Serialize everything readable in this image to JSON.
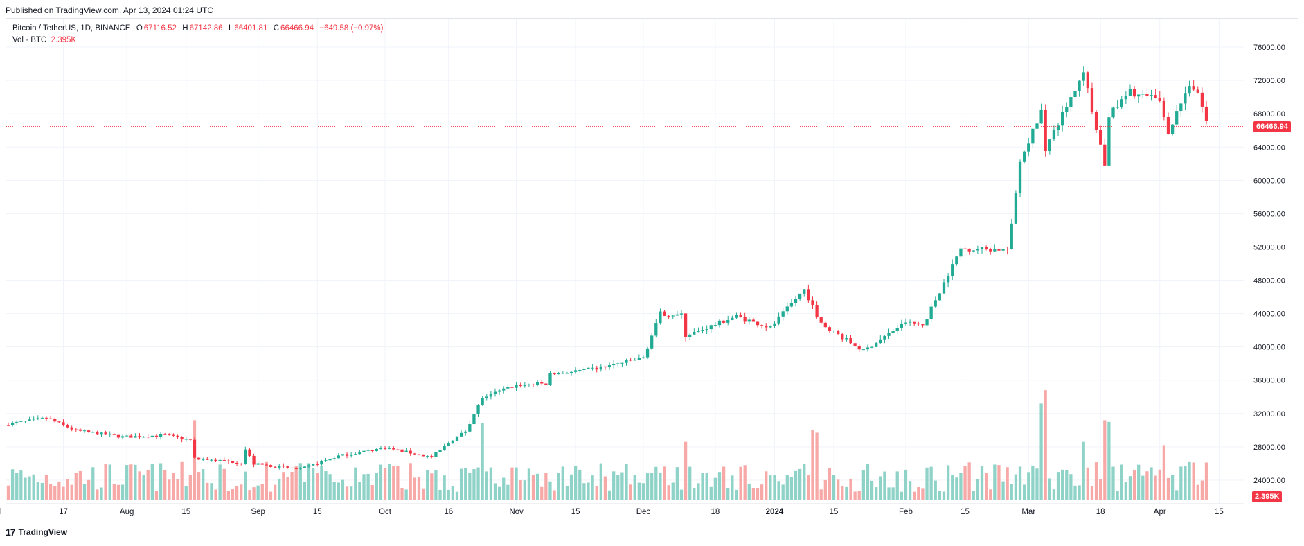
{
  "header": {
    "published": "Published on TradingView.com, Apr 13, 2024 01:24 UTC"
  },
  "legend": {
    "symbol": "Bitcoin / TetherUS, 1D, BINANCE",
    "o_label": "O",
    "o": "67116.52",
    "h_label": "H",
    "h": "67142.86",
    "l_label": "L",
    "l": "66401.81",
    "c_label": "C",
    "c": "66466.94",
    "change": "−649.58 (−0.97%)",
    "vol_label": "Vol · BTC",
    "vol": "2.395K"
  },
  "footer": {
    "brand": "TradingView",
    "logo_glyph": "17"
  },
  "colors": {
    "up": "#22ab94",
    "down": "#f23645",
    "vol_up": "#8fd3c8",
    "vol_down": "#f7a9a7",
    "grid": "#f0f3fa",
    "last_line": "#f23645"
  },
  "chart_data": {
    "type": "candlestick",
    "title": "Bitcoin / TetherUS, 1D, BINANCE",
    "price_axis": {
      "ticks": [
        24000,
        28000,
        32000,
        36000,
        40000,
        44000,
        48000,
        52000,
        56000,
        60000,
        64000,
        68000,
        72000,
        76000
      ],
      "range": [
        20000,
        79500
      ]
    },
    "time_axis": {
      "start": "2023-07-04",
      "end": "2024-04-12",
      "labels": [
        {
          "text": "Jul",
          "date": "2023-07-01"
        },
        {
          "text": "17",
          "date": "2023-07-17"
        },
        {
          "text": "Aug",
          "date": "2023-08-01"
        },
        {
          "text": "15",
          "date": "2023-08-15"
        },
        {
          "text": "Sep",
          "date": "2023-09-01"
        },
        {
          "text": "15",
          "date": "2023-09-15"
        },
        {
          "text": "Oct",
          "date": "2023-10-01"
        },
        {
          "text": "16",
          "date": "2023-10-16"
        },
        {
          "text": "Nov",
          "date": "2023-11-01"
        },
        {
          "text": "15",
          "date": "2023-11-15"
        },
        {
          "text": "Dec",
          "date": "2023-12-01"
        },
        {
          "text": "18",
          "date": "2023-12-18"
        },
        {
          "text": "2024",
          "date": "2024-01-01",
          "bold": true
        },
        {
          "text": "15",
          "date": "2024-01-15"
        },
        {
          "text": "Feb",
          "date": "2024-02-01"
        },
        {
          "text": "15",
          "date": "2024-02-15"
        },
        {
          "text": "Mar",
          "date": "2024-03-01"
        },
        {
          "text": "18",
          "date": "2024-03-18"
        },
        {
          "text": "Apr",
          "date": "2024-04-01"
        },
        {
          "text": "15",
          "date": "2024-04-15"
        }
      ]
    },
    "last_price": {
      "value": 66466.94,
      "label": "66466.94"
    },
    "last_volume": {
      "label": "2.395K"
    },
    "close_path": [
      [
        "2023-07-04",
        30750
      ],
      [
        "2023-07-13",
        31450
      ],
      [
        "2023-07-20",
        29950
      ],
      [
        "2023-07-31",
        29200
      ],
      [
        "2023-08-10",
        29400
      ],
      [
        "2023-08-16",
        28800
      ],
      [
        "2023-08-17",
        26600
      ],
      [
        "2023-08-28",
        26100
      ],
      [
        "2023-08-29",
        27700
      ],
      [
        "2023-08-31",
        25950
      ],
      [
        "2023-09-11",
        25300
      ],
      [
        "2023-09-20",
        26900
      ],
      [
        "2023-10-01",
        27900
      ],
      [
        "2023-10-12",
        26750
      ],
      [
        "2023-10-16",
        28500
      ],
      [
        "2023-10-20",
        29900
      ],
      [
        "2023-10-24",
        33950
      ],
      [
        "2023-11-01",
        35400
      ],
      [
        "2023-11-08",
        35600
      ],
      [
        "2023-11-09",
        36700
      ],
      [
        "2023-11-20",
        37400
      ],
      [
        "2023-12-01",
        38700
      ],
      [
        "2023-12-05",
        44000
      ],
      [
        "2023-12-10",
        43800
      ],
      [
        "2023-12-11",
        41300
      ],
      [
        "2023-12-23",
        43700
      ],
      [
        "2023-12-31",
        42300
      ],
      [
        "2024-01-08",
        46900
      ],
      [
        "2024-01-12",
        42800
      ],
      [
        "2024-01-22",
        39500
      ],
      [
        "2024-02-01",
        43000
      ],
      [
        "2024-02-05",
        42600
      ],
      [
        "2024-02-14",
        51800
      ],
      [
        "2024-02-25",
        51700
      ],
      [
        "2024-02-26",
        54500
      ],
      [
        "2024-02-28",
        62400
      ],
      [
        "2024-03-04",
        68300
      ],
      [
        "2024-03-05",
        63800
      ],
      [
        "2024-03-14",
        73100
      ],
      [
        "2024-03-19",
        62000
      ],
      [
        "2024-03-20",
        67800
      ],
      [
        "2024-03-25",
        70600
      ],
      [
        "2024-04-01",
        69600
      ],
      [
        "2024-04-03",
        65900
      ],
      [
        "2024-04-08",
        71600
      ],
      [
        "2024-04-10",
        70600
      ],
      [
        "2024-04-12",
        67100
      ]
    ],
    "volume_spikes": [
      [
        "2023-08-17",
        31200
      ],
      [
        "2023-10-24",
        30900
      ],
      [
        "2024-03-04",
        33200
      ],
      [
        "2024-03-05",
        34800
      ],
      [
        "2024-03-19",
        31200
      ],
      [
        "2024-03-20",
        31000
      ],
      [
        "2024-01-10",
        30000
      ],
      [
        "2024-01-11",
        29700
      ],
      [
        "2023-12-11",
        28600
      ],
      [
        "2024-04-02",
        28200
      ],
      [
        "2024-03-14",
        28600
      ]
    ]
  }
}
